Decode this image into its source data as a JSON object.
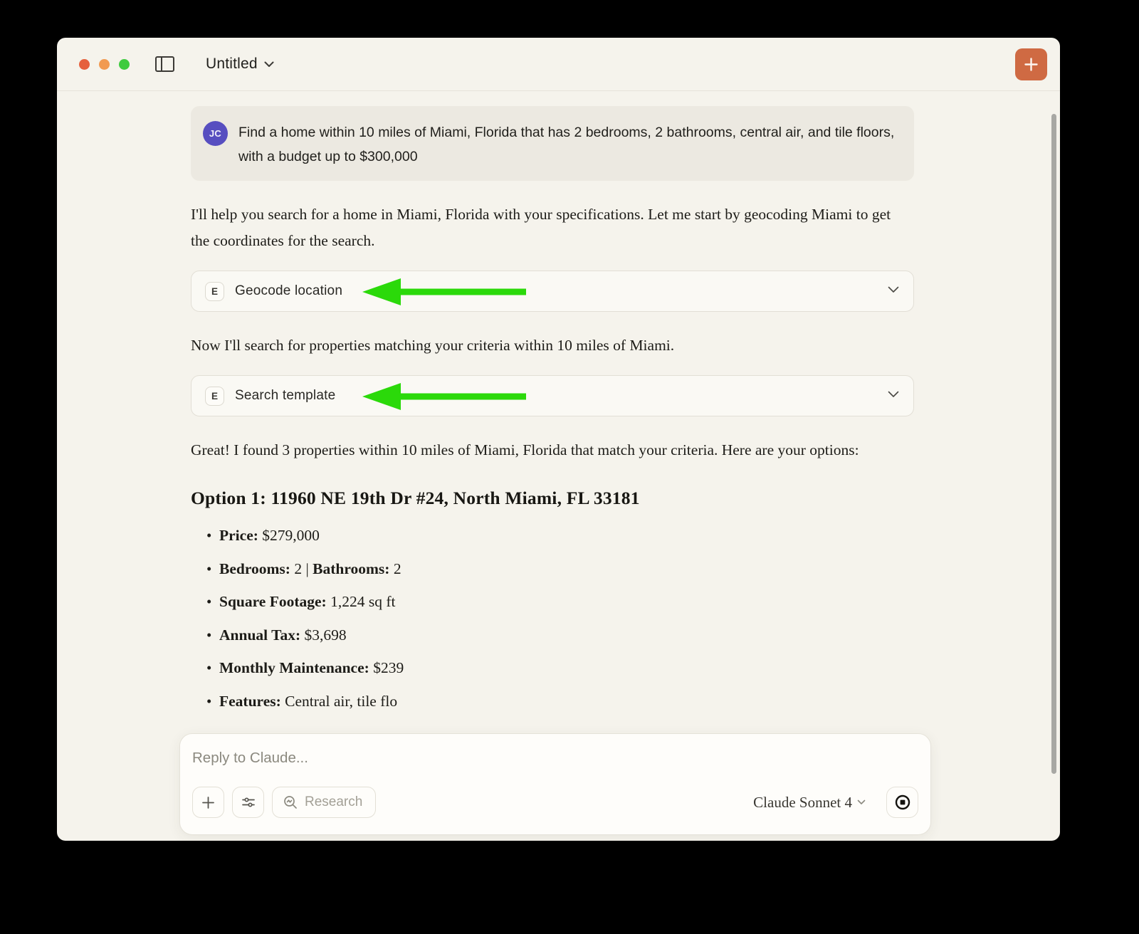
{
  "window": {
    "title": "Untitled",
    "traffic_lights": {
      "close_color": "#e5603c",
      "minimize_color": "#f19a51",
      "zoom_color": "#3fcb3f"
    },
    "new_chat_color": "#cf6a43"
  },
  "user_message": {
    "avatar_initials": "JC",
    "avatar_color": "#574ec0",
    "text": "Find a home within 10 miles of Miami, Florida that has 2 bedrooms, 2 bathrooms, central air, and tile floors, with a budget up to $300,000"
  },
  "assistant_message": {
    "para1": "I'll help you search for a home in Miami, Florida with your specifications. Let me start by geocoding Miami to get the coordinates for the search.",
    "tool1": {
      "badge": "E",
      "label": "Geocode location"
    },
    "para2": "Now I'll search for properties matching your criteria within 10 miles of Miami.",
    "tool2": {
      "badge": "E",
      "label": "Search template"
    },
    "para3": "Great! I found 3 properties within 10 miles of Miami, Florida that match your criteria. Here are your options:",
    "option_heading": "Option 1: 11960 NE 19th Dr #24, North Miami, FL 33181",
    "bullets": [
      [
        {
          "text": "Price:",
          "bold": true
        },
        {
          "text": " $279,000",
          "bold": false
        }
      ],
      [
        {
          "text": "Bedrooms:",
          "bold": true
        },
        {
          "text": " 2 | ",
          "bold": false
        },
        {
          "text": "Bathrooms:",
          "bold": true
        },
        {
          "text": " 2",
          "bold": false
        }
      ],
      [
        {
          "text": "Square Footage:",
          "bold": true
        },
        {
          "text": " 1,224 sq ft",
          "bold": false
        }
      ],
      [
        {
          "text": "Annual Tax:",
          "bold": true
        },
        {
          "text": " $3,698",
          "bold": false
        }
      ],
      [
        {
          "text": "Monthly Maintenance:",
          "bold": true
        },
        {
          "text": " $239",
          "bold": false
        }
      ],
      [
        {
          "text": "Features:",
          "bold": true
        },
        {
          "text": " Central air, tile flo",
          "bold": false
        }
      ]
    ]
  },
  "annotations": {
    "arrow_color": "#2bd90a"
  },
  "composer": {
    "placeholder": "Reply to Claude...",
    "research_label": "Research",
    "model_label": "Claude Sonnet 4"
  }
}
